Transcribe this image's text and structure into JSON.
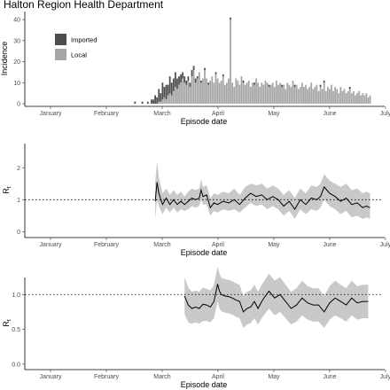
{
  "title": "Halton Region Health Department",
  "colors": {
    "imported": "#4d4d4d",
    "local": "#a6a6a6",
    "ribbon": "#c9c9c9",
    "line": "#000000"
  },
  "chart_data": [
    {
      "type": "bar",
      "stacked": true,
      "xlabel": "Episode date",
      "ylabel": "Incidence",
      "ylim": [
        0,
        43
      ],
      "yticks": [
        0,
        10,
        20,
        30,
        40
      ],
      "x_tick_labels": [
        "January",
        "February",
        "March",
        "April",
        "May",
        "June",
        "July"
      ],
      "x_tick_positions": [
        "2020-01-15",
        "2020-02-15",
        "2020-03-15",
        "2020-04-15",
        "2020-05-15",
        "2020-06-15",
        "2020-07-15"
      ],
      "x_start_date": "2020-01-01",
      "legend": {
        "position": "top-left",
        "entries": [
          "Imported",
          "Local"
        ]
      },
      "series": [
        {
          "name": "Imported",
          "x": [
            "2020-03-01",
            "2020-03-05",
            "2020-03-08",
            "2020-03-10",
            "2020-03-11",
            "2020-03-12",
            "2020-03-13",
            "2020-03-14",
            "2020-03-15",
            "2020-03-16",
            "2020-03-17",
            "2020-03-18",
            "2020-03-19",
            "2020-03-20",
            "2020-03-21",
            "2020-03-22",
            "2020-03-23",
            "2020-03-24",
            "2020-03-25",
            "2020-03-26",
            "2020-03-27",
            "2020-03-28",
            "2020-03-29",
            "2020-03-30",
            "2020-03-31",
            "2020-04-01",
            "2020-04-02",
            "2020-04-03",
            "2020-04-04",
            "2020-04-06",
            "2020-04-08",
            "2020-04-10",
            "2020-04-14",
            "2020-04-18",
            "2020-04-22",
            "2020-04-29",
            "2020-05-05",
            "2020-05-13",
            "2020-05-20",
            "2020-05-27",
            "2020-06-10",
            "2020-06-12",
            "2020-06-26"
          ],
          "values": [
            1,
            1,
            1,
            2,
            2,
            4,
            3,
            6,
            4,
            8,
            5,
            7,
            5,
            8,
            6,
            6,
            7,
            5,
            4,
            4,
            3,
            3,
            2,
            2,
            2,
            3,
            2,
            2,
            1,
            1,
            1,
            1,
            1,
            1,
            1,
            1,
            1,
            1,
            1,
            1,
            1,
            1,
            1
          ]
        },
        {
          "name": "Local",
          "x": [
            "2020-03-01",
            "2020-03-02",
            "2020-03-03",
            "2020-03-04",
            "2020-03-05",
            "2020-03-06",
            "2020-03-07",
            "2020-03-08",
            "2020-03-09",
            "2020-03-10",
            "2020-03-11",
            "2020-03-12",
            "2020-03-13",
            "2020-03-14",
            "2020-03-15",
            "2020-03-16",
            "2020-03-17",
            "2020-03-18",
            "2020-03-19",
            "2020-03-20",
            "2020-03-21",
            "2020-03-22",
            "2020-03-23",
            "2020-03-24",
            "2020-03-25",
            "2020-03-26",
            "2020-03-27",
            "2020-03-28",
            "2020-03-29",
            "2020-03-30",
            "2020-03-31",
            "2020-04-01",
            "2020-04-02",
            "2020-04-03",
            "2020-04-04",
            "2020-04-05",
            "2020-04-06",
            "2020-04-07",
            "2020-04-08",
            "2020-04-09",
            "2020-04-10",
            "2020-04-11",
            "2020-04-12",
            "2020-04-13",
            "2020-04-14",
            "2020-04-15",
            "2020-04-16",
            "2020-04-17",
            "2020-04-18",
            "2020-04-19",
            "2020-04-20",
            "2020-04-21",
            "2020-04-22",
            "2020-04-23",
            "2020-04-24",
            "2020-04-25",
            "2020-04-26",
            "2020-04-27",
            "2020-04-28",
            "2020-04-29",
            "2020-04-30",
            "2020-05-01",
            "2020-05-02",
            "2020-05-03",
            "2020-05-04",
            "2020-05-05",
            "2020-05-06",
            "2020-05-07",
            "2020-05-08",
            "2020-05-09",
            "2020-05-10",
            "2020-05-11",
            "2020-05-12",
            "2020-05-13",
            "2020-05-14",
            "2020-05-15",
            "2020-05-16",
            "2020-05-17",
            "2020-05-18",
            "2020-05-19",
            "2020-05-20",
            "2020-05-21",
            "2020-05-22",
            "2020-05-23",
            "2020-05-24",
            "2020-05-25",
            "2020-05-26",
            "2020-05-27",
            "2020-05-28",
            "2020-05-29",
            "2020-05-30",
            "2020-05-31",
            "2020-06-01",
            "2020-06-02",
            "2020-06-03",
            "2020-06-04",
            "2020-06-05",
            "2020-06-06",
            "2020-06-07",
            "2020-06-08",
            "2020-06-09",
            "2020-06-10",
            "2020-06-11",
            "2020-06-12",
            "2020-06-13",
            "2020-06-14",
            "2020-06-15",
            "2020-06-16",
            "2020-06-17",
            "2020-06-18",
            "2020-06-19",
            "2020-06-20",
            "2020-06-21",
            "2020-06-22",
            "2020-06-23",
            "2020-06-24",
            "2020-06-25",
            "2020-06-26",
            "2020-06-27",
            "2020-06-28",
            "2020-06-29",
            "2020-06-30",
            "2020-07-01",
            "2020-07-02",
            "2020-07-03",
            "2020-07-04",
            "2020-07-05",
            "2020-07-06",
            "2020-07-07"
          ],
          "values": [
            0,
            0,
            0,
            0,
            0,
            0,
            0,
            0,
            0,
            0,
            0,
            0,
            0,
            1,
            1,
            2,
            3,
            2,
            4,
            5,
            4,
            6,
            8,
            7,
            9,
            10,
            12,
            10,
            9,
            11,
            8,
            13,
            16,
            10,
            12,
            15,
            10,
            12,
            16,
            12,
            9,
            11,
            13,
            10,
            14,
            12,
            10,
            11,
            13,
            9,
            10,
            12,
            40,
            10,
            8,
            12,
            11,
            9,
            13,
            10,
            9,
            10,
            11,
            8,
            10,
            9,
            12,
            10,
            8,
            10,
            9,
            11,
            10,
            8,
            9,
            10,
            8,
            11,
            9,
            10,
            8,
            9,
            7,
            10,
            9,
            8,
            11,
            8,
            9,
            7,
            8,
            10,
            8,
            9,
            7,
            8,
            10,
            7,
            8,
            9,
            6,
            8,
            7,
            10,
            6,
            8,
            7,
            9,
            6,
            8,
            7,
            5,
            8,
            6,
            7,
            5,
            6,
            7,
            5,
            6,
            4,
            5,
            6,
            4,
            5,
            4,
            5,
            3,
            4
          ]
        }
      ]
    },
    {
      "type": "line",
      "xlabel": "Episode date",
      "ylabel": "Rt",
      "ylim": [
        -0.1,
        2.7
      ],
      "yticks": [
        0,
        1,
        2
      ],
      "reference_line": 1,
      "x_tick_labels": [
        "January",
        "February",
        "March",
        "April",
        "May",
        "June",
        "July"
      ],
      "series": [
        {
          "name": "Rt",
          "x": [
            "2020-03-12",
            "2020-03-13",
            "2020-03-14",
            "2020-03-16",
            "2020-03-18",
            "2020-03-20",
            "2020-03-22",
            "2020-03-24",
            "2020-03-26",
            "2020-03-28",
            "2020-03-30",
            "2020-04-01",
            "2020-04-03",
            "2020-04-05",
            "2020-04-06",
            "2020-04-07",
            "2020-04-09",
            "2020-04-11",
            "2020-04-13",
            "2020-04-15",
            "2020-04-18",
            "2020-04-21",
            "2020-04-24",
            "2020-04-27",
            "2020-04-30",
            "2020-05-03",
            "2020-05-06",
            "2020-05-09",
            "2020-05-12",
            "2020-05-15",
            "2020-05-18",
            "2020-05-21",
            "2020-05-24",
            "2020-05-27",
            "2020-05-30",
            "2020-06-02",
            "2020-06-05",
            "2020-06-08",
            "2020-06-10",
            "2020-06-12",
            "2020-06-15",
            "2020-06-18",
            "2020-06-21",
            "2020-06-24",
            "2020-06-27",
            "2020-06-30",
            "2020-07-03",
            "2020-07-05",
            "2020-07-07"
          ],
          "values": [
            0.95,
            1.55,
            1.2,
            0.85,
            1.05,
            0.85,
            1.0,
            0.85,
            0.95,
            0.85,
            0.95,
            1.05,
            1.0,
            1.05,
            1.3,
            1.1,
            1.15,
            0.75,
            0.9,
            0.85,
            0.95,
            0.9,
            1.0,
            0.85,
            1.05,
            1.2,
            1.1,
            1.15,
            1.0,
            1.1,
            1.0,
            0.8,
            0.95,
            0.7,
            1.0,
            0.85,
            1.05,
            1.0,
            1.1,
            1.4,
            1.2,
            1.1,
            0.95,
            1.05,
            0.85,
            0.9,
            0.75,
            0.8,
            0.75
          ],
          "lower": [
            0.4,
            1.0,
            0.8,
            0.55,
            0.75,
            0.6,
            0.75,
            0.6,
            0.7,
            0.65,
            0.7,
            0.8,
            0.75,
            0.8,
            1.0,
            0.85,
            0.85,
            0.5,
            0.65,
            0.6,
            0.7,
            0.65,
            0.7,
            0.6,
            0.75,
            0.9,
            0.8,
            0.85,
            0.7,
            0.8,
            0.7,
            0.5,
            0.65,
            0.4,
            0.7,
            0.55,
            0.7,
            0.65,
            0.75,
            1.0,
            0.8,
            0.7,
            0.55,
            0.65,
            0.45,
            0.5,
            0.4,
            0.45,
            0.4
          ],
          "upper": [
            1.55,
            2.2,
            1.7,
            1.2,
            1.35,
            1.15,
            1.3,
            1.15,
            1.25,
            1.1,
            1.25,
            1.35,
            1.3,
            1.35,
            1.65,
            1.4,
            1.45,
            1.05,
            1.2,
            1.15,
            1.25,
            1.2,
            1.35,
            1.15,
            1.4,
            1.5,
            1.45,
            1.5,
            1.35,
            1.45,
            1.35,
            1.15,
            1.3,
            1.05,
            1.35,
            1.2,
            1.45,
            1.4,
            1.5,
            1.8,
            1.6,
            1.5,
            1.4,
            1.5,
            1.3,
            1.35,
            1.2,
            1.25,
            1.2
          ]
        }
      ]
    },
    {
      "type": "line",
      "xlabel": "Episode date",
      "ylabel": "Rt",
      "ylim": [
        -0.04,
        1.22
      ],
      "yticks": [
        0.0,
        0.5,
        1.0
      ],
      "reference_line": 1.0,
      "x_tick_labels": [
        "January",
        "February",
        "March",
        "April",
        "May",
        "June",
        "July"
      ],
      "series": [
        {
          "name": "Rt",
          "x": [
            "2020-03-28",
            "2020-03-30",
            "2020-04-01",
            "2020-04-03",
            "2020-04-05",
            "2020-04-07",
            "2020-04-09",
            "2020-04-11",
            "2020-04-13",
            "2020-04-15",
            "2020-04-16",
            "2020-04-17",
            "2020-04-19",
            "2020-04-21",
            "2020-04-23",
            "2020-04-25",
            "2020-04-27",
            "2020-04-29",
            "2020-05-01",
            "2020-05-03",
            "2020-05-05",
            "2020-05-07",
            "2020-05-09",
            "2020-05-11",
            "2020-05-13",
            "2020-05-16",
            "2020-05-19",
            "2020-05-22",
            "2020-05-25",
            "2020-05-28",
            "2020-05-31",
            "2020-06-03",
            "2020-06-06",
            "2020-06-09",
            "2020-06-12",
            "2020-06-15",
            "2020-06-18",
            "2020-06-21",
            "2020-06-24",
            "2020-06-27",
            "2020-06-30",
            "2020-07-03",
            "2020-07-06"
          ],
          "values": [
            0.98,
            0.85,
            0.8,
            0.82,
            0.8,
            0.86,
            0.85,
            0.82,
            0.9,
            1.15,
            1.05,
            1.0,
            0.98,
            0.97,
            0.95,
            0.92,
            0.9,
            0.75,
            0.8,
            0.82,
            0.9,
            0.8,
            0.9,
            0.98,
            1.05,
            0.95,
            1.0,
            0.9,
            0.8,
            0.85,
            0.95,
            0.88,
            0.85,
            0.85,
            0.75,
            0.88,
            0.95,
            0.9,
            0.85,
            0.95,
            0.88,
            0.9,
            0.9
          ],
          "lower": [
            0.72,
            0.6,
            0.58,
            0.6,
            0.58,
            0.62,
            0.62,
            0.6,
            0.66,
            0.9,
            0.8,
            0.76,
            0.74,
            0.73,
            0.71,
            0.68,
            0.66,
            0.52,
            0.57,
            0.59,
            0.66,
            0.57,
            0.66,
            0.73,
            0.8,
            0.7,
            0.75,
            0.66,
            0.57,
            0.61,
            0.7,
            0.64,
            0.61,
            0.61,
            0.52,
            0.64,
            0.7,
            0.66,
            0.61,
            0.7,
            0.64,
            0.66,
            0.66
          ],
          "upper": [
            1.25,
            1.1,
            1.04,
            1.06,
            1.04,
            1.1,
            1.08,
            1.06,
            1.14,
            1.4,
            1.3,
            1.24,
            1.22,
            1.21,
            1.19,
            1.16,
            1.14,
            0.98,
            1.04,
            1.06,
            1.14,
            1.04,
            1.14,
            1.22,
            1.3,
            1.2,
            1.25,
            1.14,
            1.04,
            1.09,
            1.2,
            1.12,
            1.09,
            1.09,
            0.98,
            1.12,
            1.2,
            1.14,
            1.09,
            1.2,
            1.12,
            1.14,
            1.14
          ]
        }
      ]
    }
  ]
}
